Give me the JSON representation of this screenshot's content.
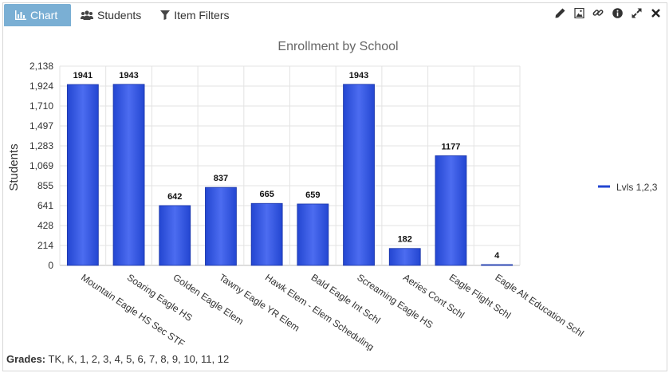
{
  "tabs": [
    {
      "label": "Chart",
      "icon": "bar-chart-icon",
      "active": true
    },
    {
      "label": "Students",
      "icon": "users-icon",
      "active": false
    },
    {
      "label": "Item Filters",
      "icon": "filter-icon",
      "active": false
    }
  ],
  "toolbar": {
    "icons": [
      "pencil-icon",
      "image-icon",
      "link-icon",
      "info-icon",
      "expand-icon",
      "close-icon"
    ]
  },
  "footer": {
    "grades_label": "Grades:",
    "grades_value": "TK, K, 1, 2, 3, 4, 5, 6, 7, 8, 9, 10, 11, 12"
  },
  "colors": {
    "bar": "#2346d1",
    "bar_light": "#4c6cf0",
    "active_tab": "#7aafd4",
    "grid": "#e3e3e3"
  },
  "chart_data": {
    "type": "bar",
    "title": "Enrollment by School",
    "ylabel": "Students",
    "xlabel": "",
    "ylim": [
      0,
      2138
    ],
    "yticks": [
      "0",
      "214",
      "428",
      "641",
      "855",
      "1,069",
      "1,283",
      "1,497",
      "1,710",
      "1,924",
      "2,138"
    ],
    "ytick_values": [
      0,
      214,
      428,
      641,
      855,
      1069,
      1283,
      1497,
      1710,
      1924,
      2138
    ],
    "grid": true,
    "legend_position": "right",
    "categories": [
      "Mountain Eagle HS Sec STF",
      "Soaring Eagle HS",
      "Golden Eagle Elem",
      "Tawny Eagle YR Elem",
      "Hawk Elem - Elem Scheduling",
      "Bald Eagle Int Schl",
      "Screaming Eagle HS",
      "Aeries Cont Schl",
      "Eagle Flight Schl",
      "Eagle Alt Education Schl"
    ],
    "series": [
      {
        "name": "Lvls 1,2,3",
        "values": [
          1941,
          1943,
          642,
          837,
          665,
          659,
          1943,
          182,
          1177,
          4
        ]
      }
    ]
  }
}
